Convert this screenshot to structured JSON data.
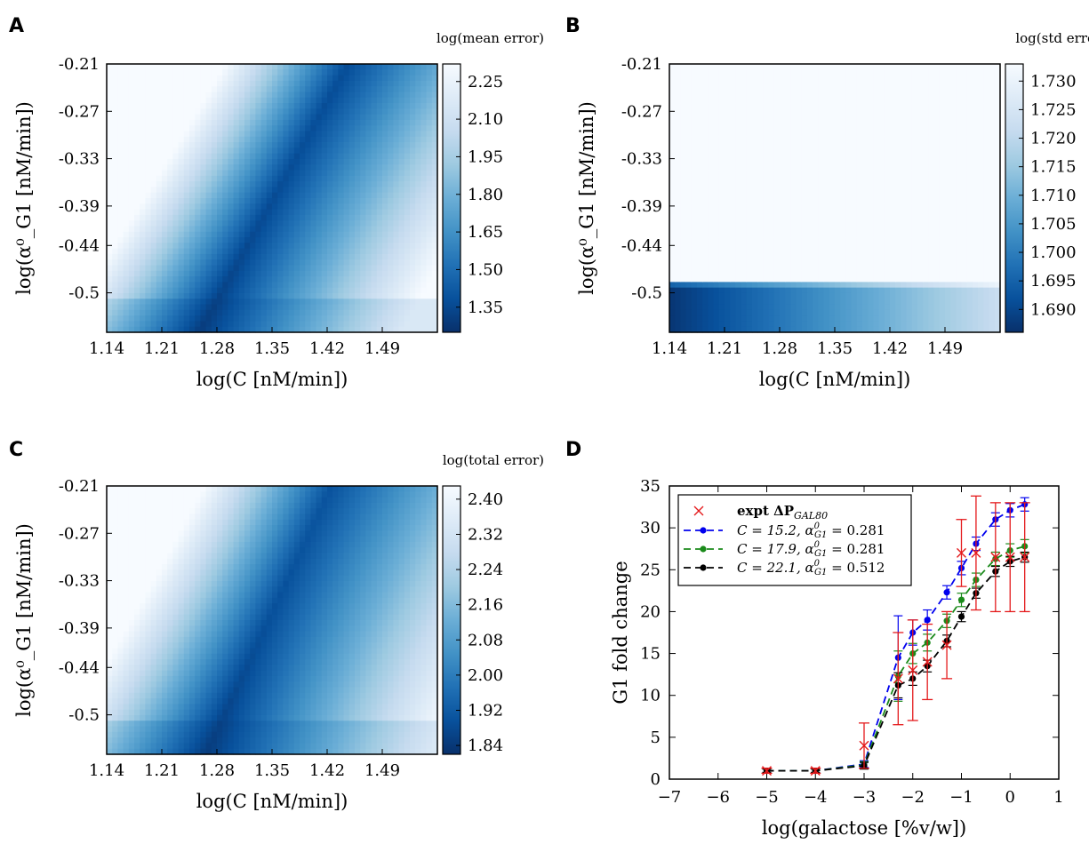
{
  "figure": {
    "panels": [
      {
        "letter": "A"
      },
      {
        "letter": "B"
      },
      {
        "letter": "C"
      },
      {
        "letter": "D"
      }
    ]
  },
  "chart_data": [
    {
      "type": "heatmap",
      "panel": "A",
      "colorbar_label": "log(mean error)",
      "xlabel": "log(C [nM/min])",
      "ylabel": "log(α⁰_G1 [nM/min])",
      "x_ticks": [
        "1.14",
        "1.21",
        "1.28",
        "1.35",
        "1.42",
        "1.49"
      ],
      "y_ticks": [
        "-0.21",
        "-0.27",
        "-0.33",
        "-0.39",
        "-0.44",
        "-0.5"
      ],
      "xlim": [
        1.14,
        1.56
      ],
      "ylim": [
        -0.55,
        -0.21
      ],
      "colorbar_ticks": [
        "2.25",
        "2.10",
        "1.95",
        "1.80",
        "1.65",
        "1.50",
        "1.35"
      ],
      "colorbar_range": [
        1.25,
        2.32
      ],
      "colormap": "Blues_r",
      "pattern": "dark diagonal valley from (1.25,-0.55) rising to (1.40,-0.21); min near x=1.25,y=-0.53"
    },
    {
      "type": "heatmap",
      "panel": "B",
      "colorbar_label": "log(std error)",
      "xlabel": "log(C [nM/min])",
      "ylabel": "log(α⁰_G1 [nM/min])",
      "x_ticks": [
        "1.14",
        "1.21",
        "1.28",
        "1.35",
        "1.42",
        "1.49"
      ],
      "y_ticks": [
        "-0.21",
        "-0.27",
        "-0.33",
        "-0.39",
        "-0.44",
        "-0.5"
      ],
      "xlim": [
        1.14,
        1.56
      ],
      "ylim": [
        -0.55,
        -0.21
      ],
      "colorbar_ticks": [
        "1.730",
        "1.725",
        "1.720",
        "1.715",
        "1.710",
        "1.705",
        "1.700",
        "1.695",
        "1.690"
      ],
      "colorbar_range": [
        1.686,
        1.733
      ],
      "colormap": "Blues_r",
      "pattern": "uniform light except bottom band y<-0.5 which is dark at low C, lighter at high C"
    },
    {
      "type": "heatmap",
      "panel": "C",
      "colorbar_label": "log(total error)",
      "xlabel": "log(C [nM/min])",
      "ylabel": "log(α⁰_G1 [nM/min])",
      "x_ticks": [
        "1.14",
        "1.21",
        "1.28",
        "1.35",
        "1.42",
        "1.49"
      ],
      "y_ticks": [
        "-0.21",
        "-0.27",
        "-0.33",
        "-0.39",
        "-0.44",
        "-0.5"
      ],
      "xlim": [
        1.14,
        1.56
      ],
      "ylim": [
        -0.55,
        -0.21
      ],
      "colorbar_ticks": [
        "2.40",
        "2.32",
        "2.24",
        "2.16",
        "2.08",
        "2.00",
        "1.92",
        "1.84"
      ],
      "colorbar_range": [
        1.82,
        2.43
      ],
      "colormap": "Blues_r",
      "pattern": "broad dark diagonal valley, minimum near x=1.25,y=-0.53"
    },
    {
      "type": "line",
      "panel": "D",
      "xlabel": "log(galactose [%v/w])",
      "ylabel": "G1 fold change",
      "xlim": [
        -7,
        1
      ],
      "ylim": [
        0,
        35
      ],
      "x_ticks": [
        "−7",
        "−6",
        "−5",
        "−4",
        "−3",
        "−2",
        "−1",
        "0",
        "1"
      ],
      "y_ticks": [
        "0",
        "5",
        "10",
        "15",
        "20",
        "25",
        "30",
        "35"
      ],
      "legend_position": "top-left",
      "experiment": {
        "name": "expt ΔP",
        "name_sub": "GAL80",
        "color": "#e41a1c",
        "x": [
          -5.0,
          -4.0,
          -3.0,
          -2.3,
          -2.0,
          -1.7,
          -1.3,
          -1.0,
          -0.7,
          -0.3,
          0.0,
          0.3
        ],
        "y": [
          1.0,
          1.0,
          4.0,
          12.0,
          13.0,
          14.0,
          16.0,
          27.0,
          27.0,
          26.5,
          26.5,
          26.5
        ],
        "err": [
          0.3,
          0.3,
          2.7,
          5.5,
          6.0,
          4.5,
          4.0,
          4.0,
          6.8,
          6.5,
          6.5,
          6.5
        ]
      },
      "series": [
        {
          "label_c": "C = 15.2, α",
          "label_sup": "0",
          "label_sub": "G1",
          "label_val": " = 0.281",
          "color": "#0000ee",
          "x": [
            -5.0,
            -4.0,
            -3.0,
            -2.3,
            -2.0,
            -1.7,
            -1.3,
            -1.0,
            -0.7,
            -0.3,
            0.0,
            0.3
          ],
          "y": [
            1.0,
            1.0,
            1.8,
            14.5,
            17.5,
            19.0,
            22.3,
            25.2,
            28.1,
            31.0,
            32.1,
            32.8
          ],
          "err": [
            0.2,
            0.2,
            0.4,
            5.0,
            1.5,
            1.2,
            0.8,
            0.8,
            0.8,
            0.8,
            0.8,
            0.8
          ]
        },
        {
          "label_c": "C = 17.9, α",
          "label_sup": "0",
          "label_sub": "G1",
          "label_val": " = 0.281",
          "color": "#1a8a1a",
          "x": [
            -5.0,
            -4.0,
            -3.0,
            -2.3,
            -2.0,
            -1.7,
            -1.3,
            -1.0,
            -0.7,
            -0.3,
            0.0,
            0.3
          ],
          "y": [
            1.0,
            1.0,
            1.7,
            12.3,
            15.0,
            16.3,
            18.9,
            21.4,
            23.8,
            26.3,
            27.3,
            27.8
          ],
          "err": [
            0.2,
            0.2,
            0.4,
            3.0,
            1.2,
            1.0,
            0.8,
            0.8,
            0.8,
            0.8,
            0.8,
            0.8
          ]
        },
        {
          "label_c": "C = 22.1, α",
          "label_sup": "0",
          "label_sub": "G1",
          "label_val": " = 0.512",
          "color": "#000000",
          "x": [
            -5.0,
            -4.0,
            -3.0,
            -2.3,
            -2.0,
            -1.7,
            -1.3,
            -1.0,
            -0.7,
            -0.3,
            0.0,
            0.3
          ],
          "y": [
            1.0,
            1.0,
            1.6,
            11.2,
            12.0,
            13.5,
            16.5,
            19.4,
            22.2,
            24.8,
            26.0,
            26.5
          ],
          "err": [
            0.2,
            0.2,
            0.4,
            1.5,
            0.8,
            0.7,
            0.7,
            0.6,
            0.6,
            0.6,
            0.6,
            0.6
          ]
        }
      ]
    }
  ]
}
